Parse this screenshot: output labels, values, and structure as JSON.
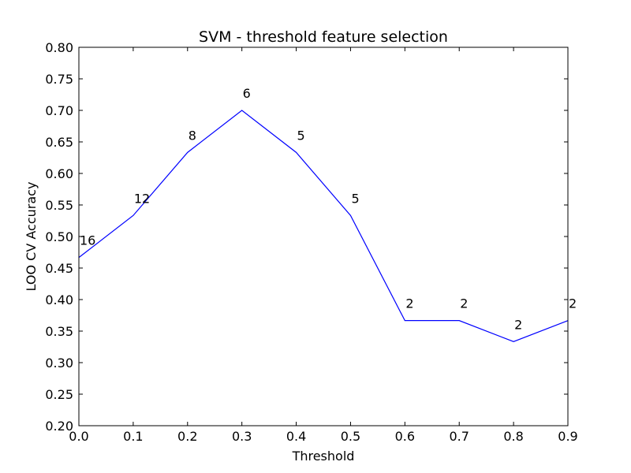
{
  "chart_data": {
    "type": "line",
    "title": "SVM - threshold feature selection",
    "xlabel": "Threshold",
    "ylabel": "LOO CV Accuracy",
    "xlim": [
      0.0,
      0.9
    ],
    "ylim": [
      0.2,
      0.8
    ],
    "xticks": [
      "0.0",
      "0.1",
      "0.2",
      "0.3",
      "0.4",
      "0.5",
      "0.6",
      "0.7",
      "0.8",
      "0.9"
    ],
    "yticks": [
      "0.20",
      "0.25",
      "0.30",
      "0.35",
      "0.40",
      "0.45",
      "0.50",
      "0.55",
      "0.60",
      "0.65",
      "0.70",
      "0.75",
      "0.80"
    ],
    "grid": false,
    "series": [
      {
        "color": "#0000ff",
        "x": [
          0.0,
          0.1,
          0.2,
          0.3,
          0.4,
          0.5,
          0.6,
          0.7,
          0.8,
          0.9
        ],
        "y": [
          0.4667,
          0.5333,
          0.6333,
          0.7,
          0.6333,
          0.5333,
          0.3667,
          0.3667,
          0.3333,
          0.3667
        ],
        "labels": [
          "16",
          "12",
          "8",
          "6",
          "5",
          "5",
          "2",
          "2",
          "2",
          "2"
        ]
      }
    ]
  }
}
